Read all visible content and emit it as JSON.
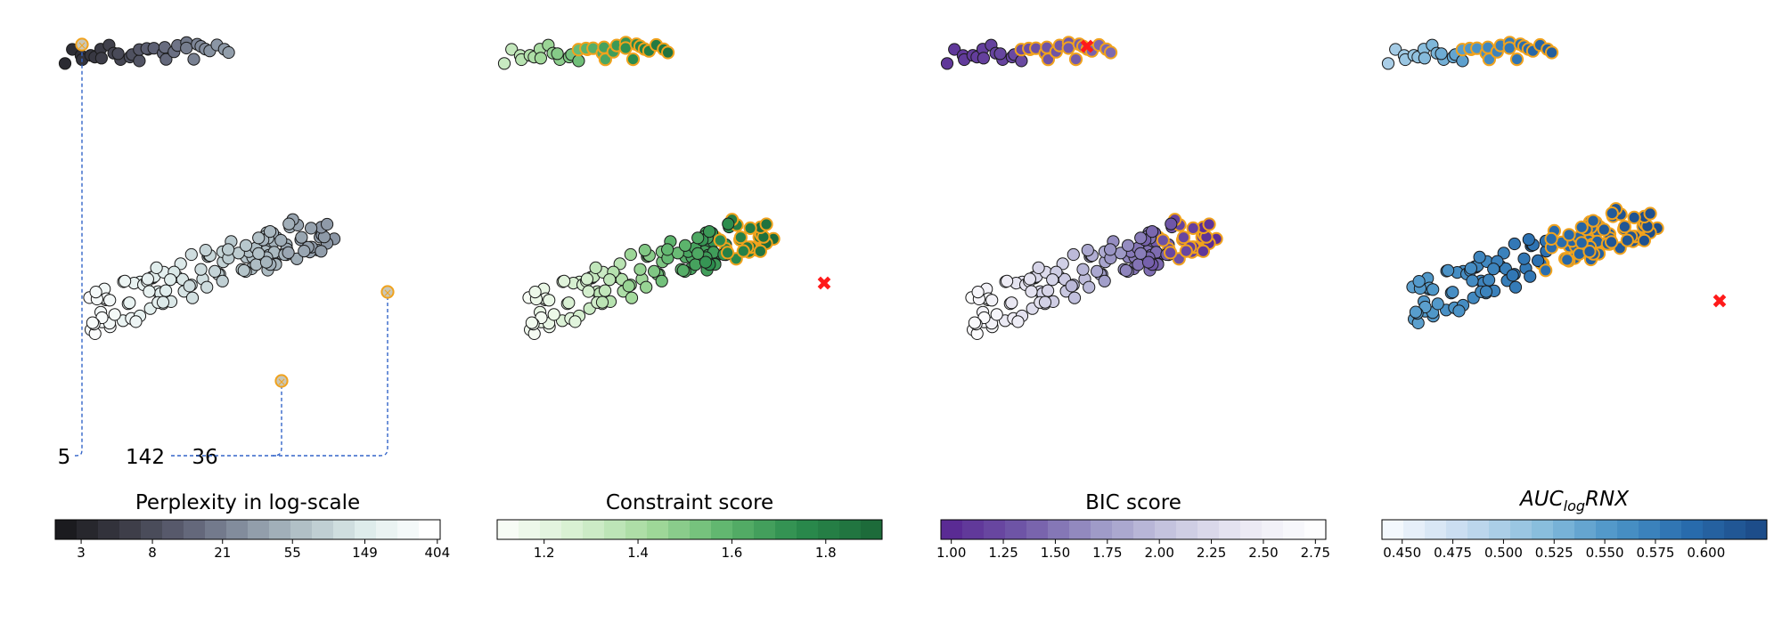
{
  "chart_data": [
    {
      "type": "scatter",
      "colormap": "bone",
      "title": "Perplexity in log-scale",
      "colorbar_ticks": [
        "3",
        "8",
        "21",
        "55",
        "149",
        "404"
      ],
      "annotations": [
        "5",
        "142",
        "36"
      ],
      "colors": {
        "connector": "#3465c9",
        "highlight_edge": "#f0a21d"
      },
      "clusters": [
        {
          "name": "top",
          "color_range": [
            "#2e2e36",
            "#7d8499"
          ]
        },
        {
          "name": "bottom",
          "color_range": [
            "#ffffff",
            "#8a9aa7"
          ]
        }
      ]
    },
    {
      "type": "scatter",
      "colormap": "Greens",
      "title": "Constraint score",
      "colorbar_ticks": [
        "1.2",
        "1.4",
        "1.6",
        "1.8"
      ],
      "colorbar_range": [
        1.1,
        1.92
      ],
      "colors": {
        "highlight_edge": "#f0a21d",
        "best_marker": "#ff1a1a"
      }
    },
    {
      "type": "scatter",
      "colormap": "Purples_r",
      "title": "BIC score",
      "colorbar_ticks": [
        "1.00",
        "1.25",
        "1.50",
        "1.75",
        "2.00",
        "2.25",
        "2.50",
        "2.75"
      ],
      "colorbar_range": [
        0.95,
        2.8
      ],
      "colors": {
        "highlight_edge": "#f0a21d",
        "best_marker": "#ff1a1a"
      }
    },
    {
      "type": "scatter",
      "colormap": "Blues",
      "title": "AUC",
      "title_subscript": "log",
      "title_suffix": "RNX",
      "colorbar_ticks": [
        "0.450",
        "0.475",
        "0.500",
        "0.525",
        "0.550",
        "0.575",
        "0.600"
      ],
      "colorbar_range": [
        0.44,
        0.63
      ],
      "colors": {
        "highlight_edge": "#f0a21d",
        "best_marker": "#ff1a1a"
      }
    }
  ]
}
